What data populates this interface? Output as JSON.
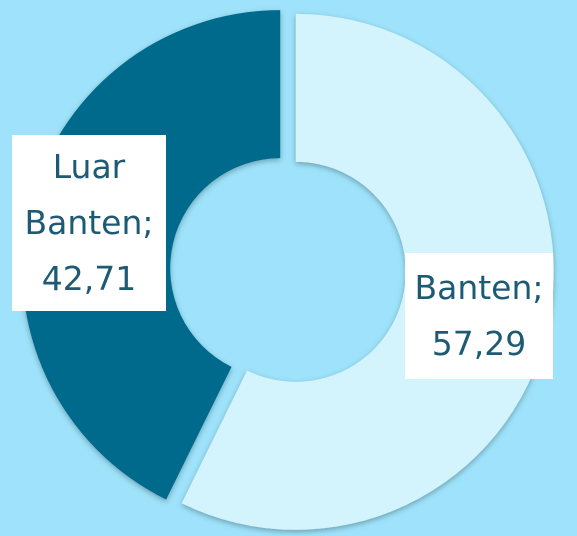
{
  "chart_data": {
    "type": "donut",
    "categories": [
      "Banten",
      "Luar Banten"
    ],
    "values": [
      57.29,
      42.71
    ],
    "value_labels": [
      "57,29",
      "42,71"
    ],
    "separator": ";",
    "colors": [
      "#d3f3fd",
      "#046b8d"
    ]
  }
}
